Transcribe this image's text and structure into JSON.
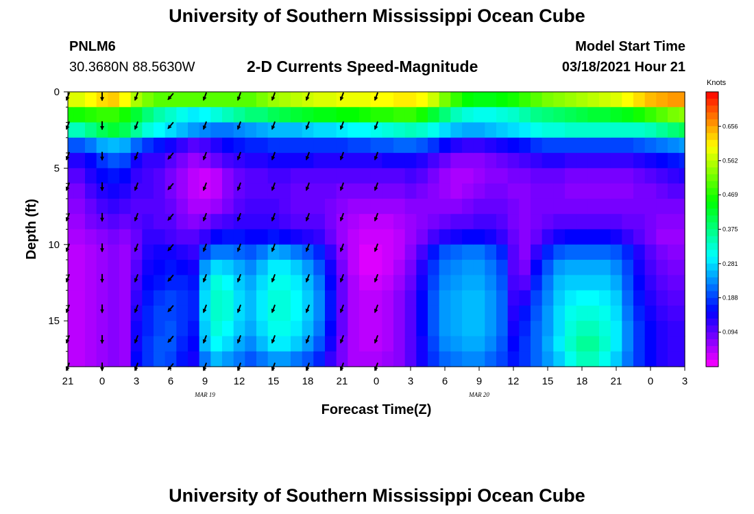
{
  "header": {
    "title": "University of Southern Mississippi Ocean Cube",
    "station": "PNLM6",
    "latlon": "30.3680N 88.5630W",
    "subtitle": "2-D Currents Speed-Magnitude",
    "model_start_label": "Model Start Time",
    "model_start_value": "03/18/2021 Hour 21"
  },
  "footer": {
    "title": "University of Southern Mississippi Ocean Cube"
  },
  "chart_data": {
    "type": "heatmap",
    "title": "2-D Currents Speed-Magnitude",
    "xlabel": "Forecast Time(Z)",
    "ylabel": "Depth (ft)",
    "x_tick_labels": [
      "21",
      "0",
      "3",
      "6",
      "9",
      "12",
      "15",
      "18",
      "21",
      "0",
      "3",
      "6",
      "9",
      "12",
      "15",
      "18",
      "21",
      "0",
      "3"
    ],
    "x_hours": [
      0,
      3,
      6,
      9,
      12,
      15,
      18,
      21,
      24,
      27,
      30,
      33,
      36,
      39,
      42,
      45,
      48,
      51,
      54
    ],
    "date_labels": [
      {
        "text": "MAR 19",
        "hour": 15
      },
      {
        "text": "MAR 20",
        "hour": 39
      }
    ],
    "y_ticks": [
      0,
      5,
      10,
      15
    ],
    "ylim": [
      0,
      18
    ],
    "colorbar": {
      "unit": "Knots",
      "ticks": [
        0.656,
        0.562,
        0.469,
        0.375,
        0.281,
        0.188,
        0.094
      ],
      "range": [
        0.0,
        0.75
      ]
    },
    "hours": [
      0,
      1,
      2,
      3,
      4,
      5,
      6,
      7,
      8,
      9,
      10,
      11,
      12,
      13,
      14,
      15,
      16,
      17,
      18,
      19,
      20,
      21,
      22,
      23,
      24,
      25,
      26,
      27,
      28,
      29,
      30,
      31,
      32,
      33,
      34,
      35,
      36,
      37,
      38,
      39,
      40,
      41,
      42,
      43,
      44,
      45,
      46,
      47,
      48,
      49,
      50,
      51,
      52,
      53,
      54
    ],
    "depths_ft": [
      0.5,
      1.5,
      2.5,
      3.5,
      4.5,
      5.5,
      6.5,
      7.5,
      8.5,
      9.5,
      10.5,
      11.5,
      12.5,
      13.5,
      14.5,
      15.5,
      16.5,
      17.5
    ],
    "speed_knots_columns": [
      [
        0.58,
        0.46,
        0.34,
        0.2,
        0.13,
        0.1,
        0.08,
        0.07,
        0.06,
        0.05,
        0.04,
        0.04,
        0.04,
        0.04,
        0.04,
        0.04,
        0.04,
        0.04
      ],
      [
        0.58,
        0.46,
        0.34,
        0.2,
        0.13,
        0.1,
        0.08,
        0.07,
        0.06,
        0.05,
        0.04,
        0.04,
        0.04,
        0.04,
        0.04,
        0.04,
        0.04,
        0.04
      ],
      [
        0.6,
        0.47,
        0.37,
        0.22,
        0.15,
        0.13,
        0.11,
        0.09,
        0.08,
        0.06,
        0.05,
        0.05,
        0.05,
        0.05,
        0.05,
        0.05,
        0.05,
        0.05
      ],
      [
        0.62,
        0.48,
        0.4,
        0.25,
        0.18,
        0.15,
        0.13,
        0.11,
        0.09,
        0.07,
        0.06,
        0.06,
        0.06,
        0.06,
        0.06,
        0.06,
        0.06,
        0.06
      ],
      [
        0.63,
        0.48,
        0.42,
        0.26,
        0.2,
        0.16,
        0.14,
        0.12,
        0.1,
        0.08,
        0.07,
        0.07,
        0.07,
        0.07,
        0.07,
        0.07,
        0.07,
        0.07
      ],
      [
        0.6,
        0.46,
        0.4,
        0.25,
        0.19,
        0.15,
        0.13,
        0.11,
        0.09,
        0.07,
        0.06,
        0.06,
        0.06,
        0.06,
        0.06,
        0.06,
        0.06,
        0.06
      ],
      [
        0.55,
        0.42,
        0.36,
        0.21,
        0.14,
        0.12,
        0.11,
        0.1,
        0.1,
        0.09,
        0.09,
        0.1,
        0.11,
        0.12,
        0.13,
        0.14,
        0.14,
        0.15
      ],
      [
        0.52,
        0.38,
        0.32,
        0.18,
        0.12,
        0.11,
        0.11,
        0.1,
        0.11,
        0.12,
        0.13,
        0.14,
        0.15,
        0.16,
        0.17,
        0.17,
        0.18,
        0.18
      ],
      [
        0.5,
        0.35,
        0.3,
        0.16,
        0.12,
        0.1,
        0.1,
        0.1,
        0.1,
        0.12,
        0.14,
        0.15,
        0.16,
        0.18,
        0.19,
        0.19,
        0.2,
        0.2
      ],
      [
        0.5,
        0.33,
        0.28,
        0.14,
        0.1,
        0.08,
        0.08,
        0.09,
        0.1,
        0.11,
        0.14,
        0.16,
        0.17,
        0.19,
        0.19,
        0.2,
        0.2,
        0.19
      ],
      [
        0.5,
        0.31,
        0.26,
        0.12,
        0.08,
        0.06,
        0.06,
        0.07,
        0.08,
        0.1,
        0.13,
        0.15,
        0.17,
        0.18,
        0.18,
        0.18,
        0.17,
        0.16
      ],
      [
        0.5,
        0.29,
        0.24,
        0.1,
        0.06,
        0.04,
        0.04,
        0.05,
        0.07,
        0.1,
        0.12,
        0.14,
        0.16,
        0.17,
        0.17,
        0.16,
        0.15,
        0.14
      ],
      [
        0.5,
        0.3,
        0.23,
        0.11,
        0.07,
        0.03,
        0.03,
        0.05,
        0.08,
        0.12,
        0.19,
        0.24,
        0.27,
        0.28,
        0.28,
        0.27,
        0.26,
        0.22
      ],
      [
        0.5,
        0.32,
        0.22,
        0.13,
        0.09,
        0.04,
        0.04,
        0.06,
        0.1,
        0.15,
        0.22,
        0.28,
        0.32,
        0.33,
        0.33,
        0.32,
        0.3,
        0.26
      ],
      [
        0.5,
        0.34,
        0.22,
        0.15,
        0.11,
        0.07,
        0.07,
        0.08,
        0.11,
        0.16,
        0.22,
        0.27,
        0.3,
        0.32,
        0.32,
        0.3,
        0.28,
        0.24
      ],
      [
        0.5,
        0.36,
        0.23,
        0.16,
        0.12,
        0.09,
        0.09,
        0.1,
        0.12,
        0.16,
        0.21,
        0.25,
        0.27,
        0.28,
        0.28,
        0.27,
        0.25,
        0.22
      ],
      [
        0.5,
        0.38,
        0.24,
        0.17,
        0.13,
        0.1,
        0.1,
        0.11,
        0.12,
        0.15,
        0.2,
        0.23,
        0.25,
        0.26,
        0.26,
        0.25,
        0.23,
        0.2
      ],
      [
        0.52,
        0.38,
        0.25,
        0.17,
        0.13,
        0.1,
        0.1,
        0.11,
        0.12,
        0.15,
        0.22,
        0.26,
        0.28,
        0.29,
        0.29,
        0.28,
        0.26,
        0.22
      ],
      [
        0.54,
        0.4,
        0.26,
        0.18,
        0.14,
        0.11,
        0.1,
        0.11,
        0.12,
        0.16,
        0.25,
        0.29,
        0.31,
        0.32,
        0.32,
        0.31,
        0.29,
        0.24
      ],
      [
        0.55,
        0.41,
        0.26,
        0.18,
        0.14,
        0.11,
        0.1,
        0.1,
        0.11,
        0.15,
        0.24,
        0.29,
        0.31,
        0.32,
        0.32,
        0.31,
        0.29,
        0.24
      ],
      [
        0.56,
        0.42,
        0.26,
        0.18,
        0.14,
        0.1,
        0.09,
        0.09,
        0.1,
        0.14,
        0.22,
        0.27,
        0.29,
        0.3,
        0.3,
        0.29,
        0.27,
        0.22
      ],
      [
        0.57,
        0.43,
        0.27,
        0.18,
        0.14,
        0.1,
        0.09,
        0.09,
        0.1,
        0.13,
        0.2,
        0.24,
        0.26,
        0.27,
        0.27,
        0.26,
        0.24,
        0.2
      ],
      [
        0.58,
        0.44,
        0.28,
        0.18,
        0.13,
        0.1,
        0.09,
        0.09,
        0.1,
        0.12,
        0.17,
        0.2,
        0.22,
        0.23,
        0.23,
        0.22,
        0.2,
        0.17
      ],
      [
        0.58,
        0.44,
        0.28,
        0.18,
        0.13,
        0.1,
        0.09,
        0.08,
        0.08,
        0.09,
        0.12,
        0.14,
        0.15,
        0.16,
        0.16,
        0.15,
        0.14,
        0.12
      ],
      [
        0.59,
        0.45,
        0.29,
        0.18,
        0.13,
        0.1,
        0.08,
        0.07,
        0.06,
        0.06,
        0.07,
        0.08,
        0.09,
        0.09,
        0.09,
        0.09,
        0.08,
        0.08
      ],
      [
        0.59,
        0.45,
        0.3,
        0.19,
        0.13,
        0.1,
        0.08,
        0.06,
        0.05,
        0.04,
        0.04,
        0.04,
        0.05,
        0.05,
        0.05,
        0.05,
        0.05,
        0.05
      ],
      [
        0.59,
        0.46,
        0.3,
        0.19,
        0.13,
        0.1,
        0.08,
        0.06,
        0.04,
        0.03,
        0.02,
        0.02,
        0.03,
        0.04,
        0.04,
        0.04,
        0.04,
        0.05
      ],
      [
        0.6,
        0.47,
        0.31,
        0.2,
        0.13,
        0.1,
        0.08,
        0.06,
        0.04,
        0.03,
        0.02,
        0.02,
        0.03,
        0.04,
        0.04,
        0.04,
        0.04,
        0.05
      ],
      [
        0.6,
        0.47,
        0.32,
        0.2,
        0.14,
        0.1,
        0.08,
        0.06,
        0.04,
        0.03,
        0.03,
        0.03,
        0.04,
        0.05,
        0.05,
        0.05,
        0.05,
        0.06
      ],
      [
        0.61,
        0.48,
        0.33,
        0.21,
        0.14,
        0.1,
        0.08,
        0.06,
        0.05,
        0.04,
        0.04,
        0.05,
        0.06,
        0.07,
        0.07,
        0.07,
        0.07,
        0.07
      ],
      [
        0.61,
        0.48,
        0.34,
        0.21,
        0.14,
        0.11,
        0.09,
        0.07,
        0.06,
        0.06,
        0.07,
        0.08,
        0.09,
        0.1,
        0.1,
        0.1,
        0.1,
        0.1
      ],
      [
        0.6,
        0.46,
        0.33,
        0.2,
        0.13,
        0.1,
        0.08,
        0.07,
        0.07,
        0.08,
        0.11,
        0.13,
        0.14,
        0.15,
        0.15,
        0.15,
        0.14,
        0.14
      ],
      [
        0.57,
        0.42,
        0.31,
        0.18,
        0.11,
        0.08,
        0.07,
        0.07,
        0.08,
        0.11,
        0.16,
        0.18,
        0.19,
        0.2,
        0.2,
        0.2,
        0.19,
        0.18
      ],
      [
        0.52,
        0.38,
        0.28,
        0.15,
        0.09,
        0.06,
        0.06,
        0.07,
        0.09,
        0.13,
        0.2,
        0.22,
        0.23,
        0.24,
        0.24,
        0.24,
        0.23,
        0.21
      ],
      [
        0.48,
        0.34,
        0.26,
        0.13,
        0.07,
        0.05,
        0.05,
        0.07,
        0.1,
        0.14,
        0.21,
        0.23,
        0.24,
        0.25,
        0.25,
        0.25,
        0.24,
        0.22
      ],
      [
        0.45,
        0.32,
        0.25,
        0.12,
        0.07,
        0.05,
        0.06,
        0.08,
        0.1,
        0.15,
        0.22,
        0.24,
        0.25,
        0.26,
        0.26,
        0.26,
        0.25,
        0.23
      ],
      [
        0.44,
        0.31,
        0.25,
        0.12,
        0.07,
        0.06,
        0.07,
        0.09,
        0.11,
        0.15,
        0.22,
        0.24,
        0.25,
        0.26,
        0.26,
        0.26,
        0.25,
        0.23
      ],
      [
        0.44,
        0.31,
        0.26,
        0.13,
        0.08,
        0.07,
        0.08,
        0.09,
        0.11,
        0.14,
        0.2,
        0.22,
        0.23,
        0.24,
        0.24,
        0.24,
        0.23,
        0.21
      ],
      [
        0.45,
        0.32,
        0.27,
        0.14,
        0.09,
        0.07,
        0.08,
        0.09,
        0.1,
        0.12,
        0.17,
        0.19,
        0.2,
        0.21,
        0.21,
        0.21,
        0.2,
        0.19
      ],
      [
        0.46,
        0.33,
        0.28,
        0.15,
        0.1,
        0.08,
        0.07,
        0.08,
        0.08,
        0.09,
        0.1,
        0.1,
        0.11,
        0.12,
        0.13,
        0.14,
        0.15,
        0.16
      ],
      [
        0.48,
        0.35,
        0.29,
        0.16,
        0.11,
        0.08,
        0.07,
        0.07,
        0.07,
        0.07,
        0.07,
        0.08,
        0.1,
        0.13,
        0.16,
        0.17,
        0.18,
        0.18
      ],
      [
        0.5,
        0.37,
        0.31,
        0.18,
        0.12,
        0.09,
        0.08,
        0.08,
        0.08,
        0.09,
        0.12,
        0.15,
        0.17,
        0.19,
        0.2,
        0.21,
        0.21,
        0.21
      ],
      [
        0.52,
        0.38,
        0.32,
        0.19,
        0.13,
        0.09,
        0.08,
        0.08,
        0.09,
        0.12,
        0.17,
        0.2,
        0.22,
        0.23,
        0.24,
        0.24,
        0.25,
        0.24
      ],
      [
        0.53,
        0.39,
        0.32,
        0.19,
        0.13,
        0.09,
        0.08,
        0.08,
        0.1,
        0.14,
        0.2,
        0.24,
        0.26,
        0.27,
        0.28,
        0.28,
        0.29,
        0.27
      ],
      [
        0.54,
        0.4,
        0.33,
        0.19,
        0.12,
        0.08,
        0.07,
        0.08,
        0.1,
        0.15,
        0.21,
        0.25,
        0.27,
        0.29,
        0.31,
        0.32,
        0.33,
        0.31
      ],
      [
        0.55,
        0.41,
        0.33,
        0.19,
        0.12,
        0.08,
        0.07,
        0.08,
        0.1,
        0.15,
        0.21,
        0.25,
        0.27,
        0.3,
        0.32,
        0.34,
        0.36,
        0.34
      ],
      [
        0.56,
        0.42,
        0.33,
        0.19,
        0.12,
        0.08,
        0.07,
        0.08,
        0.1,
        0.15,
        0.21,
        0.25,
        0.27,
        0.3,
        0.32,
        0.34,
        0.36,
        0.34
      ],
      [
        0.57,
        0.42,
        0.33,
        0.19,
        0.12,
        0.08,
        0.07,
        0.08,
        0.1,
        0.15,
        0.21,
        0.25,
        0.27,
        0.29,
        0.31,
        0.32,
        0.33,
        0.31
      ],
      [
        0.58,
        0.43,
        0.33,
        0.19,
        0.12,
        0.08,
        0.07,
        0.08,
        0.1,
        0.14,
        0.2,
        0.23,
        0.25,
        0.27,
        0.28,
        0.29,
        0.29,
        0.27
      ],
      [
        0.6,
        0.44,
        0.33,
        0.19,
        0.12,
        0.08,
        0.07,
        0.08,
        0.09,
        0.12,
        0.17,
        0.19,
        0.2,
        0.21,
        0.22,
        0.23,
        0.23,
        0.22
      ],
      [
        0.62,
        0.46,
        0.33,
        0.2,
        0.13,
        0.09,
        0.08,
        0.08,
        0.09,
        0.1,
        0.13,
        0.14,
        0.15,
        0.16,
        0.17,
        0.18,
        0.18,
        0.18
      ],
      [
        0.64,
        0.48,
        0.34,
        0.21,
        0.14,
        0.1,
        0.08,
        0.08,
        0.08,
        0.08,
        0.1,
        0.11,
        0.12,
        0.13,
        0.14,
        0.15,
        0.15,
        0.15
      ],
      [
        0.65,
        0.5,
        0.36,
        0.22,
        0.15,
        0.11,
        0.09,
        0.08,
        0.07,
        0.06,
        0.08,
        0.09,
        0.1,
        0.11,
        0.12,
        0.13,
        0.13,
        0.13
      ],
      [
        0.66,
        0.52,
        0.38,
        0.23,
        0.16,
        0.12,
        0.1,
        0.08,
        0.07,
        0.06,
        0.07,
        0.08,
        0.09,
        0.1,
        0.11,
        0.12,
        0.12,
        0.12
      ],
      [
        0.66,
        0.53,
        0.4,
        0.24,
        0.17,
        0.13,
        0.1,
        0.08,
        0.07,
        0.06,
        0.07,
        0.08,
        0.09,
        0.1,
        0.11,
        0.12,
        0.12,
        0.12
      ]
    ],
    "arrow_depths_ft": [
      0.3,
      2.2,
      4.2,
      6.2,
      8.2,
      10.2,
      12.2,
      14.2,
      16.2,
      18.0
    ],
    "arrow_directions_deg": [
      [
        200,
        200,
        200,
        200,
        200,
        200,
        200,
        200,
        200,
        200
      ],
      [
        180,
        180,
        180,
        180,
        180,
        180,
        180,
        180,
        180,
        180
      ],
      [
        200,
        200,
        200,
        200,
        200,
        200,
        200,
        200,
        200,
        200
      ],
      [
        220,
        220,
        220,
        220,
        220,
        220,
        220,
        220,
        220,
        220
      ],
      [
        200,
        200,
        200,
        200,
        200,
        200,
        200,
        200,
        200,
        200
      ],
      [
        200,
        200,
        200,
        200,
        200,
        200,
        200,
        200,
        200,
        200
      ],
      [
        200,
        200,
        200,
        200,
        200,
        200,
        200,
        200,
        200,
        200
      ],
      [
        200,
        200,
        200,
        200,
        200,
        200,
        200,
        200,
        200,
        200
      ],
      [
        200,
        200,
        200,
        200,
        200,
        200,
        200,
        200,
        200,
        200
      ],
      [
        200,
        200,
        200,
        200,
        200,
        200,
        200,
        200,
        200,
        200
      ]
    ]
  }
}
